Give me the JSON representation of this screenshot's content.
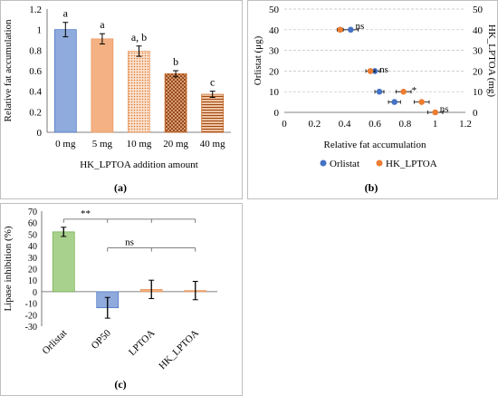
{
  "panels": [
    {
      "id": "a",
      "panel_label": "(a)",
      "chart_data": {
        "type": "bar",
        "categories": [
          "0 mg",
          "5 mg",
          "10 mg",
          "20 mg",
          "40 mg"
        ],
        "values": [
          1.0,
          0.91,
          0.79,
          0.57,
          0.37
        ],
        "errors": [
          0.07,
          0.05,
          0.05,
          0.03,
          0.03
        ],
        "significance_letters": [
          "a",
          "a",
          "a, b",
          "b",
          "c"
        ],
        "fills": [
          "blue-solid",
          "orange-solid",
          "orange-dots",
          "brown-crosshatch",
          "brown-stripes"
        ],
        "colors": {
          "blue": "#8faadc",
          "orange": "#f4b183",
          "brown": "#c55a11"
        },
        "xlabel": "HK_LPTOA addition amount",
        "ylabel": "Relative fat accumulation",
        "ylim": [
          0,
          1.2
        ],
        "yticks": [
          0,
          0.2,
          0.4,
          0.6,
          0.8,
          1,
          1.2
        ],
        "grid": false
      }
    },
    {
      "id": "b",
      "panel_label": "(b)",
      "chart_data": {
        "type": "scatter",
        "xlabel": "Relative fat accumulation",
        "ylabel": "Orlistat (μg)",
        "ylabel_right": "HK_LPTOA (mg)",
        "xlim": [
          0,
          1.2
        ],
        "ylim": [
          0,
          50
        ],
        "xticks": [
          0,
          0.2,
          0.4,
          0.6,
          0.8,
          1,
          1.2
        ],
        "yticks": [
          0,
          10,
          20,
          30,
          40,
          50
        ],
        "grid": "horizontal-dashed",
        "legend_position": "bottom",
        "series": [
          {
            "name": "Orlistat",
            "color": "#4472c4",
            "points": [
              {
                "x": 0.73,
                "y": 5,
                "err": 0.04
              },
              {
                "x": 0.63,
                "y": 10,
                "err": 0.03
              },
              {
                "x": 0.6,
                "y": 20,
                "err": 0.03
              },
              {
                "x": 0.44,
                "y": 40,
                "err": 0.05
              }
            ]
          },
          {
            "name": "HK_LPTOA",
            "color": "#ed7d31",
            "points": [
              {
                "x": 1.0,
                "y": 0,
                "err": 0.05
              },
              {
                "x": 0.91,
                "y": 5,
                "err": 0.05
              },
              {
                "x": 0.79,
                "y": 10,
                "err": 0.05
              },
              {
                "x": 0.57,
                "y": 20,
                "err": 0.03
              },
              {
                "x": 0.37,
                "y": 40,
                "err": 0.02
              }
            ]
          }
        ],
        "annotations": [
          {
            "text": "ns",
            "x": 0.5,
            "y": 42
          },
          {
            "text": "ns",
            "x": 0.66,
            "y": 21
          },
          {
            "text": "*",
            "x": 0.86,
            "y": 11
          },
          {
            "text": "ns",
            "x": 1.06,
            "y": 2
          }
        ]
      }
    },
    {
      "id": "c",
      "panel_label": "(c)",
      "chart_data": {
        "type": "bar",
        "categories": [
          "Orlistat",
          "OP50",
          "LPTOA",
          "HK_LPTOA"
        ],
        "values": [
          52,
          -14,
          2,
          1
        ],
        "errors": [
          4,
          9,
          8,
          8
        ],
        "colors": [
          "#a9d18e",
          "#8faadc",
          "#f4b183",
          "#f4b183"
        ],
        "ylabel": "Lipase inhibition (%)",
        "ylim": [
          -30,
          70
        ],
        "yticks": [
          -30,
          -20,
          -10,
          0,
          10,
          20,
          30,
          40,
          50,
          60,
          70
        ],
        "grid": false,
        "brackets": [
          {
            "label": "**",
            "level": 63,
            "targets": [
              0,
              1,
              2,
              3
            ]
          },
          {
            "label": "ns",
            "level": 38,
            "targets": [
              1,
              2,
              3
            ]
          }
        ]
      }
    }
  ]
}
